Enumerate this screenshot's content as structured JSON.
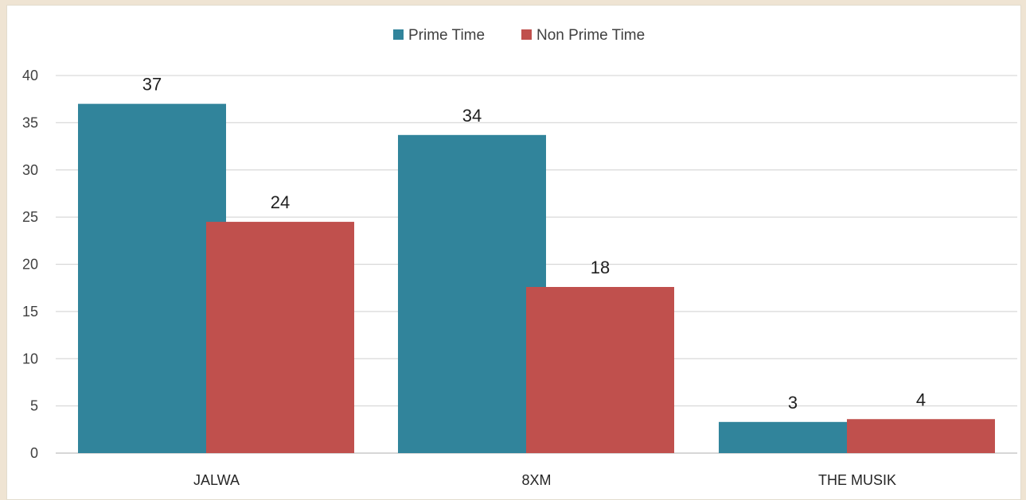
{
  "chart_data": {
    "type": "bar",
    "categories": [
      "JALWA",
      "8XM",
      "THE MUSIK"
    ],
    "series": [
      {
        "name": "Prime Time",
        "color": "#31849b",
        "values": [
          37,
          33.7,
          3.3
        ],
        "labels": [
          "37",
          "34",
          "3"
        ]
      },
      {
        "name": "Non Prime Time",
        "color": "#c0504d",
        "values": [
          24.5,
          17.6,
          3.6
        ],
        "labels": [
          "24",
          "18",
          "4"
        ]
      }
    ],
    "ylim": [
      0,
      40
    ],
    "yticks": [
      "0",
      "5",
      "10",
      "15",
      "20",
      "25",
      "30",
      "35",
      "40"
    ],
    "grid": true,
    "legend": "top-center",
    "title": "",
    "xlabel": "",
    "ylabel": ""
  }
}
